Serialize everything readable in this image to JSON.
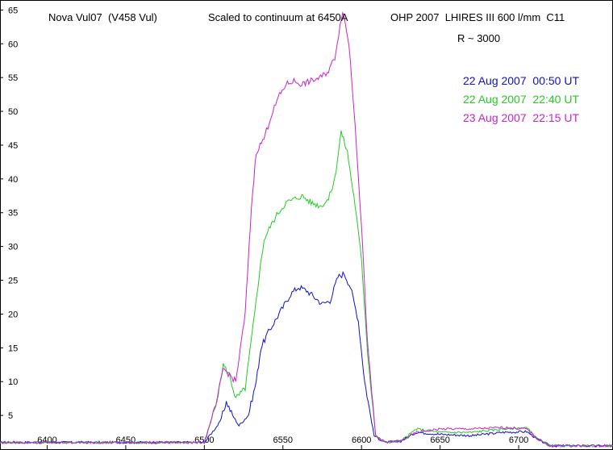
{
  "chart_data": {
    "type": "line",
    "title_parts": [
      "Nova Vul07  (V458 Vul)",
      "Scaled to continuum at 6450A",
      "OHP 2007  LHIRES III 600 l/mm  C11"
    ],
    "subtitle": "R ~ 3000",
    "xlabel": "",
    "ylabel": "",
    "xlim": [
      6370,
      6760
    ],
    "ylim": [
      0,
      66
    ],
    "x_ticks": [
      6400,
      6450,
      6500,
      6550,
      6600,
      6650,
      6700
    ],
    "y_ticks": [
      5,
      10,
      15,
      20,
      25,
      30,
      35,
      40,
      45,
      50,
      55,
      60,
      65
    ],
    "grid": false,
    "legend_position": "top-right",
    "series": [
      {
        "name": "22 Aug 2007  00:50 UT",
        "color": "#1010c8",
        "points": [
          [
            6370,
            1.0
          ],
          [
            6450,
            1.0
          ],
          [
            6500,
            1.0
          ],
          [
            6510,
            4.0
          ],
          [
            6514,
            7.0
          ],
          [
            6518,
            5.0
          ],
          [
            6522,
            3.5
          ],
          [
            6528,
            5.0
          ],
          [
            6533,
            10.0
          ],
          [
            6536,
            15.0
          ],
          [
            6540,
            17.0
          ],
          [
            6545,
            19.0
          ],
          [
            6550,
            21.0
          ],
          [
            6555,
            23.0
          ],
          [
            6560,
            24.0
          ],
          [
            6565,
            23.5
          ],
          [
            6570,
            22.5
          ],
          [
            6575,
            21.5
          ],
          [
            6580,
            22.0
          ],
          [
            6585,
            25.5
          ],
          [
            6589,
            26.0
          ],
          [
            6593,
            24.0
          ],
          [
            6598,
            19.0
          ],
          [
            6602,
            10.0
          ],
          [
            6608,
            2.0
          ],
          [
            6615,
            1.0
          ],
          [
            6625,
            1.2
          ],
          [
            6635,
            2.5
          ],
          [
            6650,
            2.2
          ],
          [
            6670,
            2.0
          ],
          [
            6690,
            2.5
          ],
          [
            6705,
            2.6
          ],
          [
            6712,
            1.5
          ],
          [
            6720,
            0.5
          ],
          [
            6760,
            0.5
          ]
        ]
      },
      {
        "name": "22 Aug 2007  22:40 UT",
        "color": "#22cc22",
        "points": [
          [
            6370,
            1.0
          ],
          [
            6450,
            1.0
          ],
          [
            6500,
            1.0
          ],
          [
            6508,
            7.0
          ],
          [
            6512,
            12.5
          ],
          [
            6516,
            11.0
          ],
          [
            6520,
            7.5
          ],
          [
            6526,
            9.0
          ],
          [
            6532,
            20.0
          ],
          [
            6535,
            26.0
          ],
          [
            6538,
            31.0
          ],
          [
            6542,
            33.0
          ],
          [
            6547,
            35.0
          ],
          [
            6552,
            36.5
          ],
          [
            6557,
            37.0
          ],
          [
            6562,
            37.5
          ],
          [
            6568,
            36.5
          ],
          [
            6574,
            36.0
          ],
          [
            6579,
            37.0
          ],
          [
            6583,
            40.0
          ],
          [
            6587,
            47.0
          ],
          [
            6591,
            44.0
          ],
          [
            6596,
            36.0
          ],
          [
            6600,
            28.0
          ],
          [
            6604,
            14.0
          ],
          [
            6609,
            2.0
          ],
          [
            6615,
            1.0
          ],
          [
            6625,
            1.2
          ],
          [
            6635,
            3.0
          ],
          [
            6650,
            2.5
          ],
          [
            6670,
            2.5
          ],
          [
            6690,
            3.0
          ],
          [
            6705,
            3.2
          ],
          [
            6712,
            1.5
          ],
          [
            6720,
            0.5
          ],
          [
            6760,
            0.5
          ]
        ]
      },
      {
        "name": "23 Aug 2007  22:15 UT",
        "color": "#cc22cc",
        "points": [
          [
            6370,
            1.0
          ],
          [
            6450,
            1.0
          ],
          [
            6500,
            1.0
          ],
          [
            6508,
            7.0
          ],
          [
            6512,
            12.0
          ],
          [
            6516,
            11.0
          ],
          [
            6520,
            10.0
          ],
          [
            6526,
            20.0
          ],
          [
            6530,
            36.0
          ],
          [
            6533,
            44.0
          ],
          [
            6538,
            46.0
          ],
          [
            6542,
            49.0
          ],
          [
            6547,
            52.0
          ],
          [
            6552,
            54.0
          ],
          [
            6557,
            54.5
          ],
          [
            6562,
            54.0
          ],
          [
            6568,
            54.5
          ],
          [
            6574,
            55.0
          ],
          [
            6579,
            56.0
          ],
          [
            6583,
            58.0
          ],
          [
            6588,
            65.0
          ],
          [
            6592,
            60.0
          ],
          [
            6596,
            48.0
          ],
          [
            6600,
            33.0
          ],
          [
            6604,
            15.0
          ],
          [
            6609,
            2.0
          ],
          [
            6615,
            1.0
          ],
          [
            6625,
            1.2
          ],
          [
            6635,
            2.5
          ],
          [
            6650,
            3.0
          ],
          [
            6670,
            3.0
          ],
          [
            6690,
            3.2
          ],
          [
            6705,
            3.0
          ],
          [
            6712,
            1.5
          ],
          [
            6720,
            0.5
          ],
          [
            6760,
            0.5
          ]
        ]
      }
    ]
  }
}
